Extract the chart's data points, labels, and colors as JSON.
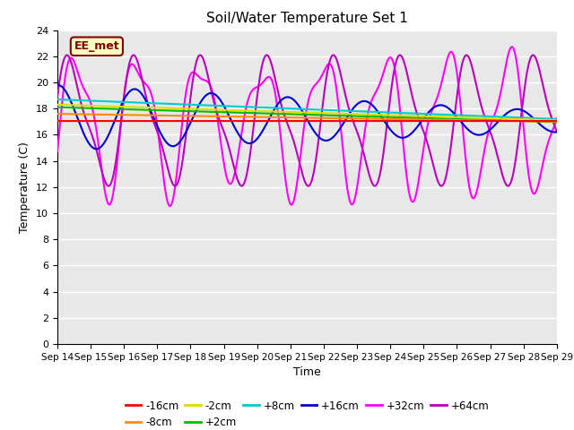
{
  "title": "Soil/Water Temperature Set 1",
  "xlabel": "Time",
  "ylabel": "Temperature (C)",
  "ylim": [
    0,
    24
  ],
  "yticks": [
    0,
    2,
    4,
    6,
    8,
    10,
    12,
    14,
    16,
    18,
    20,
    22,
    24
  ],
  "xtick_labels": [
    "Sep 14",
    "Sep 15",
    "Sep 16",
    "Sep 17",
    "Sep 18",
    "Sep 19",
    "Sep 20",
    "Sep 21",
    "Sep 22",
    "Sep 23",
    "Sep 24",
    "Sep 25",
    "Sep 26",
    "Sep 27",
    "Sep 28",
    "Sep 29"
  ],
  "background_color": "#d8d8d8",
  "plot_bg": "#e8e8e8",
  "label_box_text": "EE_met",
  "label_box_color": "#ffffc0",
  "label_box_border": "#800000",
  "series": {
    "-16cm": {
      "color": "#ff0000",
      "lw": 1.5
    },
    "-8cm": {
      "color": "#ff8c00",
      "lw": 1.5
    },
    "-2cm": {
      "color": "#dddd00",
      "lw": 1.5
    },
    "+2cm": {
      "color": "#00bb00",
      "lw": 1.5
    },
    "+8cm": {
      "color": "#00cccc",
      "lw": 1.5
    },
    "+16cm": {
      "color": "#0000cc",
      "lw": 1.5
    },
    "+32cm": {
      "color": "#ff00ff",
      "lw": 1.5
    },
    "+64cm": {
      "color": "#bb00bb",
      "lw": 1.5
    }
  },
  "legend_entries": [
    "-16cm",
    "-8cm",
    "-2cm",
    "+2cm",
    "+8cm",
    "+16cm",
    "+32cm",
    "+64cm"
  ]
}
